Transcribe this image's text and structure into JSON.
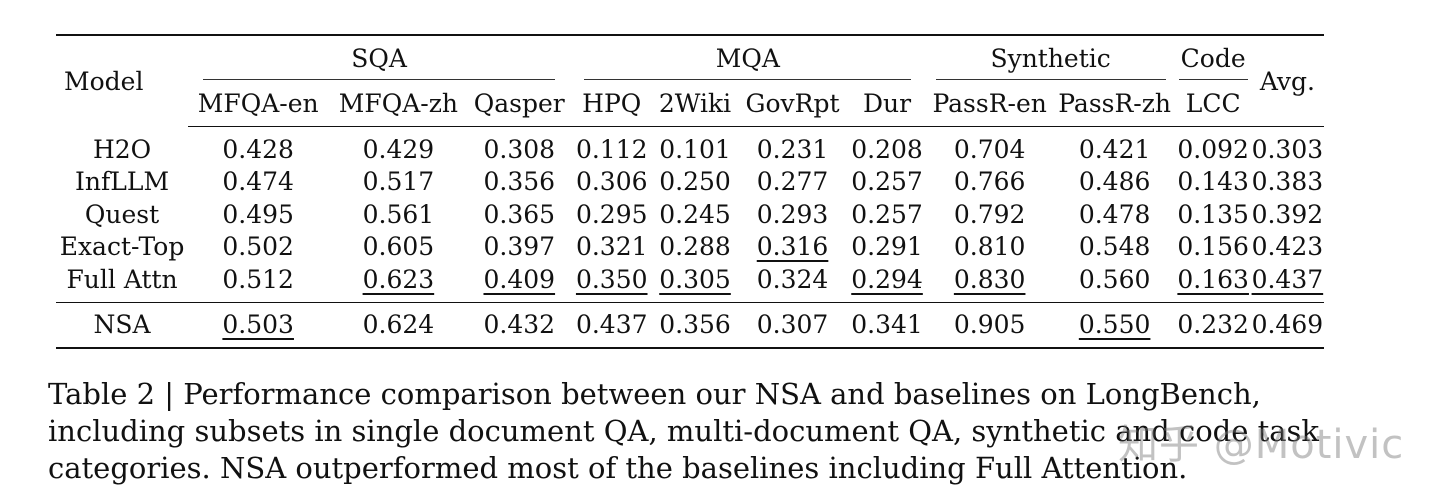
{
  "table": {
    "group_headers": {
      "model": "Model",
      "sqa": "SQA",
      "mqa": "MQA",
      "synthetic": "Synthetic",
      "code": "Code",
      "avg": "Avg."
    },
    "columns": [
      "MFQA-en",
      "MFQA-zh",
      "Qasper",
      "HPQ",
      "2Wiki",
      "GovRpt",
      "Dur",
      "PassR-en",
      "PassR-zh",
      "LCC"
    ],
    "rows": [
      {
        "model": "H2O",
        "values": [
          "0.428",
          "0.429",
          "0.308",
          "0.112",
          "0.101",
          "0.231",
          "0.208",
          "0.704",
          "0.421",
          "0.092",
          "0.303"
        ]
      },
      {
        "model": "InfLLM",
        "values": [
          "0.474",
          "0.517",
          "0.356",
          "0.306",
          "0.250",
          "0.277",
          "0.257",
          "0.766",
          "0.486",
          "0.143",
          "0.383"
        ]
      },
      {
        "model": "Quest",
        "values": [
          "0.495",
          "0.561",
          "0.365",
          "0.295",
          "0.245",
          "0.293",
          "0.257",
          "0.792",
          "0.478",
          "0.135",
          "0.392"
        ]
      },
      {
        "model": "Exact-Top",
        "values": [
          "0.502",
          "0.605",
          "0.397",
          "0.321",
          "0.288",
          "0.316",
          "0.291",
          "0.810",
          "0.548",
          "0.156",
          "0.423"
        ]
      },
      {
        "model": "Full Attn",
        "values": [
          "0.512",
          "0.623",
          "0.409",
          "0.350",
          "0.305",
          "0.324",
          "0.294",
          "0.830",
          "0.560",
          "0.163",
          "0.437"
        ]
      },
      {
        "model": "NSA",
        "values": [
          "0.503",
          "0.624",
          "0.432",
          "0.437",
          "0.356",
          "0.307",
          "0.341",
          "0.905",
          "0.550",
          "0.232",
          "0.469"
        ]
      }
    ]
  },
  "caption": "Table 2 | Performance comparison between our NSA and baselines on LongBench, including subsets in single document QA, multi-document QA, synthetic and code task categories. NSA outperformed most of the baselines including Full Attention.",
  "watermark": "知乎 @Motivic"
}
